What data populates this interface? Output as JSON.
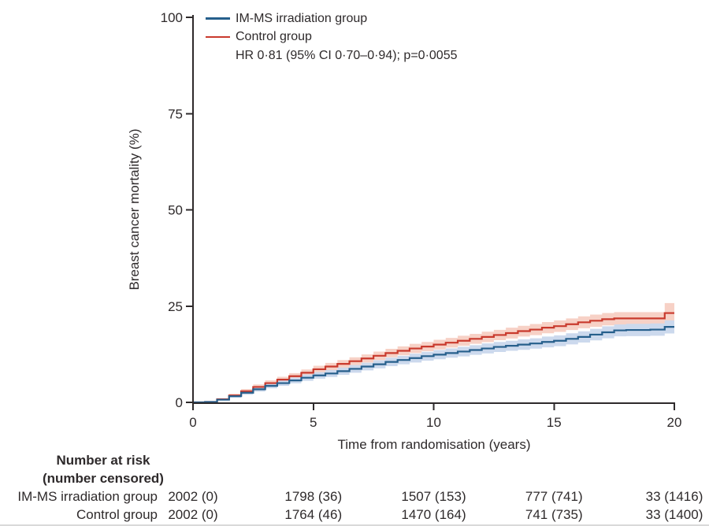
{
  "figure": {
    "background": "#ffffff",
    "text_color": "#2e2a2b",
    "axis_color": "#2e2a2b"
  },
  "legend": {
    "items": [
      {
        "label": "IM-MS irradiation group",
        "color": "#265f8c"
      },
      {
        "label": "Control group",
        "color": "#c93a2d"
      }
    ],
    "annotation": "HR 0·81 (95% CI 0·70–0·94); p=0·0055"
  },
  "axes": {
    "x_title": "Time from randomisation (years)",
    "y_title": "Breast cancer mortality (%)"
  },
  "chart_data": {
    "type": "line",
    "subtype": "kaplan-meier-step-with-ci-bands",
    "title": "",
    "xlabel": "Time from randomisation (years)",
    "ylabel": "Breast cancer mortality (%)",
    "xlim": [
      0,
      20
    ],
    "ylim": [
      0,
      100
    ],
    "x_ticks": [
      0,
      5,
      10,
      15,
      20
    ],
    "y_ticks": [
      0,
      25,
      50,
      75,
      100
    ],
    "grid": false,
    "legend_position": "top-left-inside",
    "annotation": "HR 0·81 (95% CI 0·70–0·94); p=0·0055",
    "series": [
      {
        "name": "Control group",
        "color": "#c93a2d",
        "band_color": "#f7d1c6",
        "x": [
          0,
          0.5,
          1,
          1.5,
          2,
          2.5,
          3,
          3.5,
          4,
          4.5,
          5,
          5.5,
          6,
          6.5,
          7,
          7.5,
          8,
          8.5,
          9,
          9.5,
          10,
          10.5,
          11,
          11.5,
          12,
          12.5,
          13,
          13.5,
          14,
          14.5,
          15,
          15.5,
          16,
          16.5,
          17,
          17.5,
          18,
          19,
          19.6,
          20
        ],
        "y": [
          0,
          0.1,
          0.8,
          1.8,
          2.9,
          4.0,
          5.0,
          5.9,
          6.8,
          7.7,
          8.6,
          9.3,
          10.0,
          10.7,
          11.4,
          12.1,
          12.8,
          13.4,
          14.0,
          14.5,
          15.0,
          15.5,
          16.0,
          16.5,
          17.0,
          17.5,
          18.0,
          18.5,
          18.9,
          19.4,
          19.8,
          20.3,
          20.8,
          21.2,
          21.6,
          21.8,
          21.8,
          21.8,
          23.2,
          23.2
        ],
        "ci_half_width": [
          0,
          0.1,
          0.3,
          0.45,
          0.55,
          0.65,
          0.7,
          0.75,
          0.8,
          0.85,
          0.9,
          0.95,
          1.0,
          1.0,
          1.05,
          1.1,
          1.1,
          1.15,
          1.2,
          1.2,
          1.25,
          1.25,
          1.3,
          1.3,
          1.35,
          1.35,
          1.4,
          1.4,
          1.45,
          1.45,
          1.5,
          1.5,
          1.55,
          1.6,
          1.6,
          1.65,
          1.65,
          1.65,
          2.6,
          2.6
        ]
      },
      {
        "name": "IM-MS irradiation group",
        "color": "#265f8c",
        "band_color": "#ccd9ed",
        "x": [
          0,
          0.5,
          1,
          1.5,
          2,
          2.5,
          3,
          3.5,
          4,
          4.5,
          5,
          5.5,
          6,
          6.5,
          7,
          7.5,
          8,
          8.5,
          9,
          9.5,
          10,
          10.5,
          11,
          11.5,
          12,
          12.5,
          13,
          13.5,
          14,
          14.5,
          15,
          15.5,
          16,
          16.5,
          17,
          17.5,
          18,
          19,
          19.6,
          20
        ],
        "y": [
          0,
          0.1,
          0.7,
          1.6,
          2.5,
          3.4,
          4.3,
          5.0,
          5.7,
          6.4,
          7.0,
          7.5,
          8.1,
          8.7,
          9.3,
          9.9,
          10.5,
          11.0,
          11.5,
          12.0,
          12.4,
          12.8,
          13.2,
          13.6,
          14.0,
          14.4,
          14.7,
          15.0,
          15.3,
          15.7,
          16.0,
          16.5,
          17.0,
          17.6,
          18.2,
          18.7,
          18.8,
          18.9,
          19.6,
          19.6
        ],
        "ci_half_width": [
          0,
          0.1,
          0.25,
          0.4,
          0.5,
          0.6,
          0.65,
          0.7,
          0.75,
          0.8,
          0.85,
          0.9,
          0.95,
          1.0,
          1.0,
          1.05,
          1.1,
          1.1,
          1.15,
          1.15,
          1.2,
          1.2,
          1.25,
          1.25,
          1.3,
          1.3,
          1.3,
          1.35,
          1.35,
          1.4,
          1.4,
          1.45,
          1.45,
          1.5,
          1.55,
          1.55,
          1.6,
          1.6,
          1.7,
          1.7
        ]
      }
    ]
  },
  "risk_table": {
    "header_line1": "Number at risk",
    "header_line2": "(number censored)",
    "time_points": [
      0,
      5,
      10,
      15,
      20
    ],
    "rows": [
      {
        "label": "IM-MS irradiation group",
        "values": [
          "2002 (0)",
          "1798 (36)",
          "1507 (153)",
          "777 (741)",
          "33 (1416)"
        ]
      },
      {
        "label": "Control group",
        "values": [
          "2002 (0)",
          "1764 (46)",
          "1470 (164)",
          "741 (735)",
          "33 (1400)"
        ]
      }
    ]
  }
}
